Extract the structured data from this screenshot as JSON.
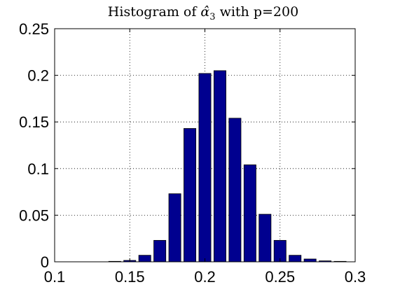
{
  "chart_data": {
    "type": "bar",
    "title_prefix": "Histogram of ",
    "title_symbol": "α̂",
    "title_subscript": "3",
    "title_suffix": " with p=200",
    "xlabel": "",
    "ylabel": "",
    "xlim": [
      0.1,
      0.3
    ],
    "ylim": [
      0,
      0.25
    ],
    "bar_width": 0.008,
    "x": [
      0.11,
      0.12,
      0.13,
      0.14,
      0.15,
      0.16,
      0.17,
      0.18,
      0.19,
      0.2,
      0.21,
      0.22,
      0.23,
      0.24,
      0.25,
      0.26,
      0.27,
      0.28,
      0.29
    ],
    "values": [
      0,
      0,
      0,
      0.0005,
      0.0015,
      0.007,
      0.023,
      0.073,
      0.143,
      0.202,
      0.205,
      0.154,
      0.104,
      0.051,
      0.023,
      0.007,
      0.003,
      0.001,
      0.0005
    ],
    "xticks": [
      "0.1",
      "0.15",
      "0.2",
      "0.25",
      "0.3"
    ],
    "yticks": [
      "0",
      "0.05",
      "0.1",
      "0.15",
      "0.2",
      "0.25"
    ],
    "grid": true,
    "bar_color": "#00008f",
    "edge_color": "#000000"
  }
}
